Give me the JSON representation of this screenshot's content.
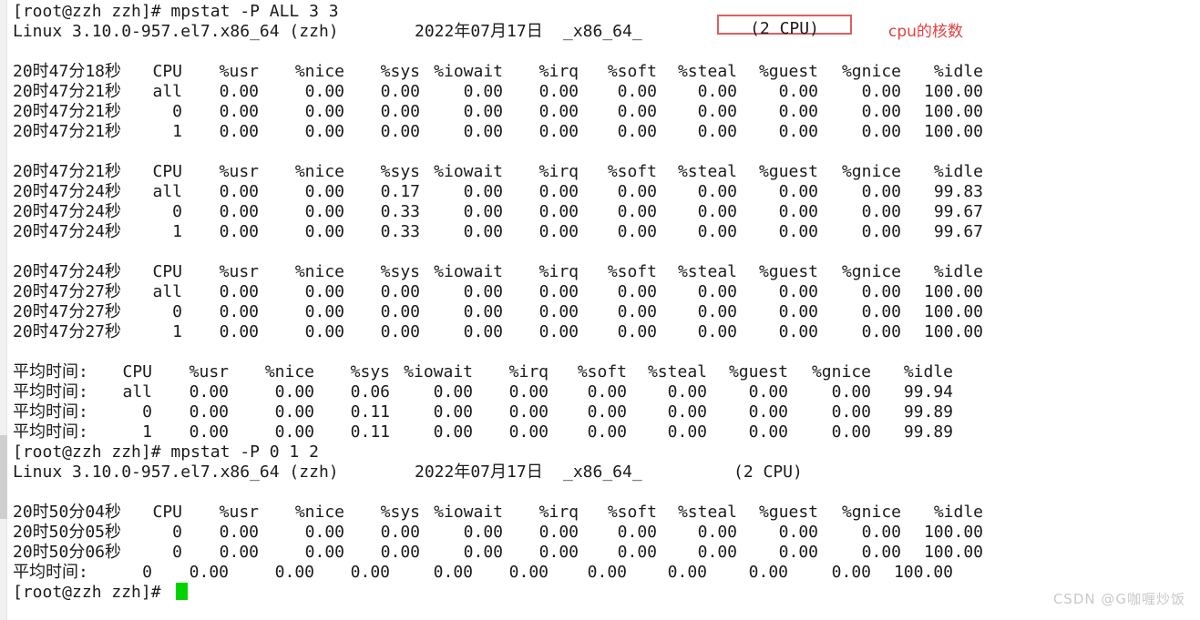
{
  "terminal": {
    "prompt1": "[root@zzh zzh]# mpstat -P ALL 3 3",
    "prompt2": "[root@zzh zzh]# mpstat -P 0 1 2",
    "prompt3": "[root@zzh zzh]# ",
    "sysline1": {
      "os": "Linux 3.10.0-957.el7.x86_64 (zzh)",
      "date": "2022年07月17日",
      "arch": "_x86_64_",
      "cpus": "(2 CPU)"
    },
    "sysline2": {
      "os": "Linux 3.10.0-957.el7.x86_64 (zzh)",
      "date": "2022年07月17日",
      "arch": "_x86_64_",
      "cpus": "(2 CPU)"
    },
    "annotation": {
      "text": "cpu的核数",
      "text_color": "#e53e3e",
      "box_border_color": "#e15e5e"
    },
    "cursor_color": "#00d400",
    "blocks": {
      "block1": {
        "header": [
          "20时47分18秒",
          "CPU",
          "%usr",
          "%nice",
          "%sys",
          "%iowait",
          "%irq",
          "%soft",
          "%steal",
          "%guest",
          "%gnice",
          "%idle"
        ],
        "rows": [
          [
            "20时47分21秒",
            "all",
            "0.00",
            "0.00",
            "0.00",
            "0.00",
            "0.00",
            "0.00",
            "0.00",
            "0.00",
            "0.00",
            "100.00"
          ],
          [
            "20时47分21秒",
            "0",
            "0.00",
            "0.00",
            "0.00",
            "0.00",
            "0.00",
            "0.00",
            "0.00",
            "0.00",
            "0.00",
            "100.00"
          ],
          [
            "20时47分21秒",
            "1",
            "0.00",
            "0.00",
            "0.00",
            "0.00",
            "0.00",
            "0.00",
            "0.00",
            "0.00",
            "0.00",
            "100.00"
          ]
        ]
      },
      "block2": {
        "header": [
          "20时47分21秒",
          "CPU",
          "%usr",
          "%nice",
          "%sys",
          "%iowait",
          "%irq",
          "%soft",
          "%steal",
          "%guest",
          "%gnice",
          "%idle"
        ],
        "rows": [
          [
            "20时47分24秒",
            "all",
            "0.00",
            "0.00",
            "0.17",
            "0.00",
            "0.00",
            "0.00",
            "0.00",
            "0.00",
            "0.00",
            "99.83"
          ],
          [
            "20时47分24秒",
            "0",
            "0.00",
            "0.00",
            "0.33",
            "0.00",
            "0.00",
            "0.00",
            "0.00",
            "0.00",
            "0.00",
            "99.67"
          ],
          [
            "20时47分24秒",
            "1",
            "0.00",
            "0.00",
            "0.33",
            "0.00",
            "0.00",
            "0.00",
            "0.00",
            "0.00",
            "0.00",
            "99.67"
          ]
        ]
      },
      "block3": {
        "header": [
          "20时47分24秒",
          "CPU",
          "%usr",
          "%nice",
          "%sys",
          "%iowait",
          "%irq",
          "%soft",
          "%steal",
          "%guest",
          "%gnice",
          "%idle"
        ],
        "rows": [
          [
            "20时47分27秒",
            "all",
            "0.00",
            "0.00",
            "0.00",
            "0.00",
            "0.00",
            "0.00",
            "0.00",
            "0.00",
            "0.00",
            "100.00"
          ],
          [
            "20时47分27秒",
            "0",
            "0.00",
            "0.00",
            "0.00",
            "0.00",
            "0.00",
            "0.00",
            "0.00",
            "0.00",
            "0.00",
            "100.00"
          ],
          [
            "20时47分27秒",
            "1",
            "0.00",
            "0.00",
            "0.00",
            "0.00",
            "0.00",
            "0.00",
            "0.00",
            "0.00",
            "0.00",
            "100.00"
          ]
        ]
      },
      "block4": {
        "header": [
          "平均时间:",
          "CPU",
          "%usr",
          "%nice",
          "%sys",
          "%iowait",
          "%irq",
          "%soft",
          "%steal",
          "%guest",
          "%gnice",
          "%idle"
        ],
        "rows": [
          [
            "平均时间:",
            "all",
            "0.00",
            "0.00",
            "0.06",
            "0.00",
            "0.00",
            "0.00",
            "0.00",
            "0.00",
            "0.00",
            "99.94"
          ],
          [
            "平均时间:",
            "0",
            "0.00",
            "0.00",
            "0.11",
            "0.00",
            "0.00",
            "0.00",
            "0.00",
            "0.00",
            "0.00",
            "99.89"
          ],
          [
            "平均时间:",
            "1",
            "0.00",
            "0.00",
            "0.11",
            "0.00",
            "0.00",
            "0.00",
            "0.00",
            "0.00",
            "0.00",
            "99.89"
          ]
        ]
      },
      "block5": {
        "header": [
          "20时50分04秒",
          "CPU",
          "%usr",
          "%nice",
          "%sys",
          "%iowait",
          "%irq",
          "%soft",
          "%steal",
          "%guest",
          "%gnice",
          "%idle"
        ],
        "rows": [
          [
            "20时50分05秒",
            "0",
            "0.00",
            "0.00",
            "0.00",
            "0.00",
            "0.00",
            "0.00",
            "0.00",
            "0.00",
            "0.00",
            "100.00"
          ],
          [
            "20时50分06秒",
            "0",
            "0.00",
            "0.00",
            "0.00",
            "0.00",
            "0.00",
            "0.00",
            "0.00",
            "0.00",
            "0.00",
            "100.00"
          ]
        ]
      },
      "block6": {
        "rows": [
          [
            "平均时间:",
            "0",
            "0.00",
            "0.00",
            "0.00",
            "0.00",
            "0.00",
            "0.00",
            "0.00",
            "0.00",
            "0.00",
            "100.00"
          ]
        ]
      }
    }
  },
  "watermark": "CSDN @G咖喱炒饭"
}
